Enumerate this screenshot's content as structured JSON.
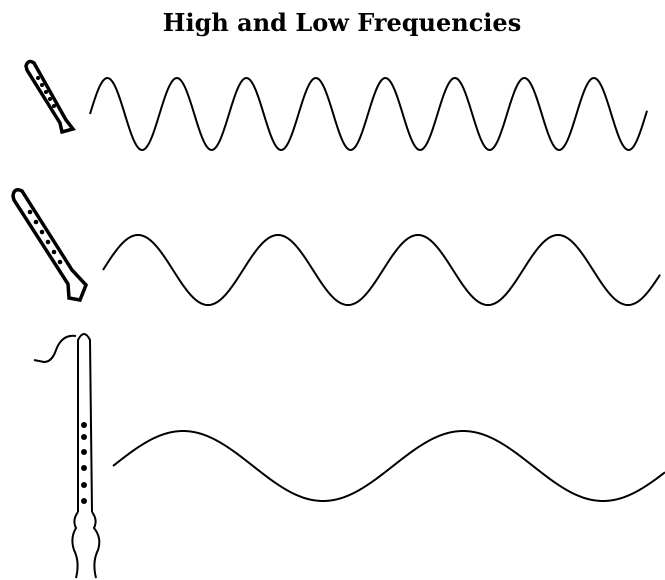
{
  "title": "High and Low Frequencies"
}
